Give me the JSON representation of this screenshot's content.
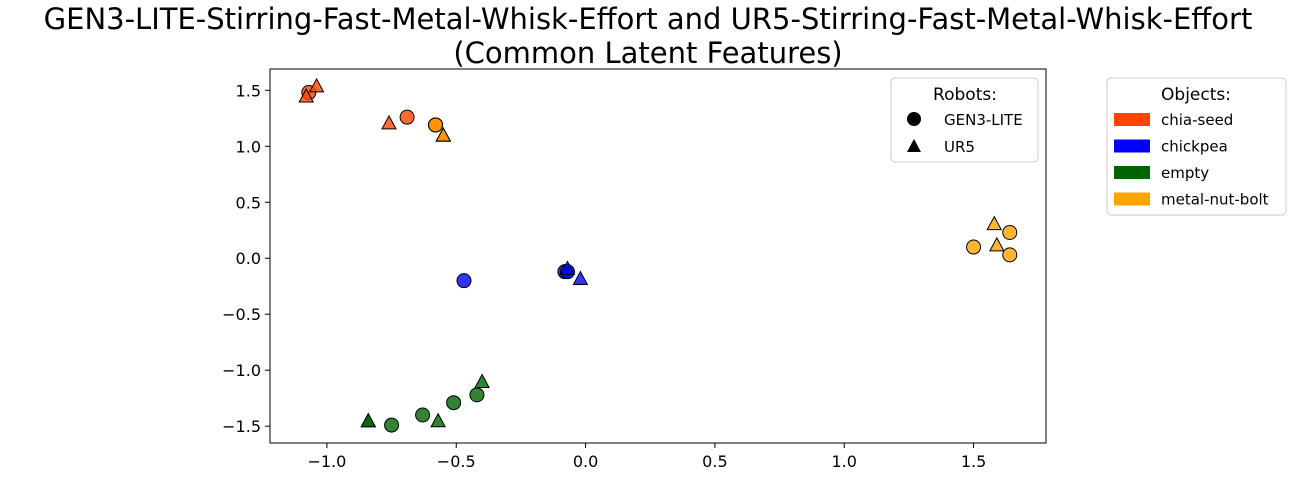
{
  "title_line1": "GEN3-LITE-Stirring-Fast-Metal-Whisk-Effort and UR5-Stirring-Fast-Metal-Whisk-Effort",
  "title_line2": "(Common Latent Features)",
  "chart_data": {
    "type": "scatter",
    "title": "GEN3-LITE-Stirring-Fast-Metal-Whisk-Effort and UR5-Stirring-Fast-Metal-Whisk-Effort (Common Latent Features)",
    "xlabel": "",
    "ylabel": "",
    "xlim": [
      -1.22,
      1.78
    ],
    "ylim": [
      -1.65,
      1.69
    ],
    "x_ticks": [
      "−1.0",
      "−0.5",
      "0.0",
      "0.5",
      "1.0",
      "1.5"
    ],
    "x_tick_values": [
      -1.0,
      -0.5,
      0.0,
      0.5,
      1.0,
      1.5
    ],
    "y_ticks": [
      "1.5",
      "1.0",
      "0.5",
      "0.0",
      "−0.5",
      "−1.0",
      "−1.5"
    ],
    "y_tick_values": [
      1.5,
      1.0,
      0.5,
      0.0,
      -0.5,
      -1.0,
      -1.5
    ],
    "grid": false,
    "legend_robots": {
      "title": "Robots:",
      "placement": "top-right inside",
      "entries": [
        {
          "label": "GEN3-LITE",
          "marker": "circle"
        },
        {
          "label": "UR5",
          "marker": "triangle"
        }
      ]
    },
    "legend_objects": {
      "title": "Objects:",
      "placement": "outside right",
      "entries": [
        {
          "label": "chia-seed",
          "color": "#ff4500"
        },
        {
          "label": "chickpea",
          "color": "#0000ff"
        },
        {
          "label": "empty",
          "color": "#006400"
        },
        {
          "label": "metal-nut-bolt",
          "color": "#ffa500"
        }
      ]
    },
    "series": [
      {
        "object": "chia-seed",
        "robot": "GEN3-LITE",
        "color": "#ff4500",
        "points": [
          [
            -1.07,
            1.48
          ],
          [
            -0.69,
            1.26
          ],
          [
            -0.58,
            1.19
          ],
          [
            -0.58,
            1.19
          ]
        ]
      },
      {
        "object": "chia-seed",
        "robot": "UR5",
        "color": "#ff4500",
        "points": [
          [
            -1.04,
            1.53
          ],
          [
            -1.08,
            1.44
          ],
          [
            -0.76,
            1.2
          ],
          [
            -0.55,
            1.09
          ],
          [
            -0.55,
            1.09
          ]
        ]
      },
      {
        "object": "chickpea",
        "robot": "GEN3-LITE",
        "color": "#0000ff",
        "points": [
          [
            -0.47,
            -0.2
          ],
          [
            -0.08,
            -0.12
          ],
          [
            -0.07,
            -0.12
          ]
        ]
      },
      {
        "object": "chickpea",
        "robot": "UR5",
        "color": "#0000ff",
        "points": [
          [
            -0.02,
            -0.19
          ],
          [
            -0.07,
            -0.1
          ]
        ]
      },
      {
        "object": "empty",
        "robot": "GEN3-LITE",
        "color": "#006400",
        "points": [
          [
            -0.75,
            -1.49
          ],
          [
            -0.63,
            -1.4
          ],
          [
            -0.51,
            -1.29
          ],
          [
            -0.42,
            -1.22
          ]
        ]
      },
      {
        "object": "empty",
        "robot": "UR5",
        "color": "#006400",
        "points": [
          [
            -0.84,
            -1.46
          ],
          [
            -0.84,
            -1.46
          ],
          [
            -0.57,
            -1.46
          ],
          [
            -0.4,
            -1.11
          ]
        ]
      },
      {
        "object": "metal-nut-bolt",
        "robot": "GEN3-LITE",
        "color": "#ffa500",
        "points": [
          [
            -0.58,
            1.19
          ],
          [
            1.5,
            0.1
          ],
          [
            1.64,
            0.23
          ],
          [
            1.64,
            0.03
          ]
        ]
      },
      {
        "object": "metal-nut-bolt",
        "robot": "UR5",
        "color": "#ffa500",
        "points": [
          [
            -0.55,
            1.09
          ],
          [
            1.58,
            0.3
          ],
          [
            1.59,
            0.11
          ]
        ]
      }
    ]
  }
}
